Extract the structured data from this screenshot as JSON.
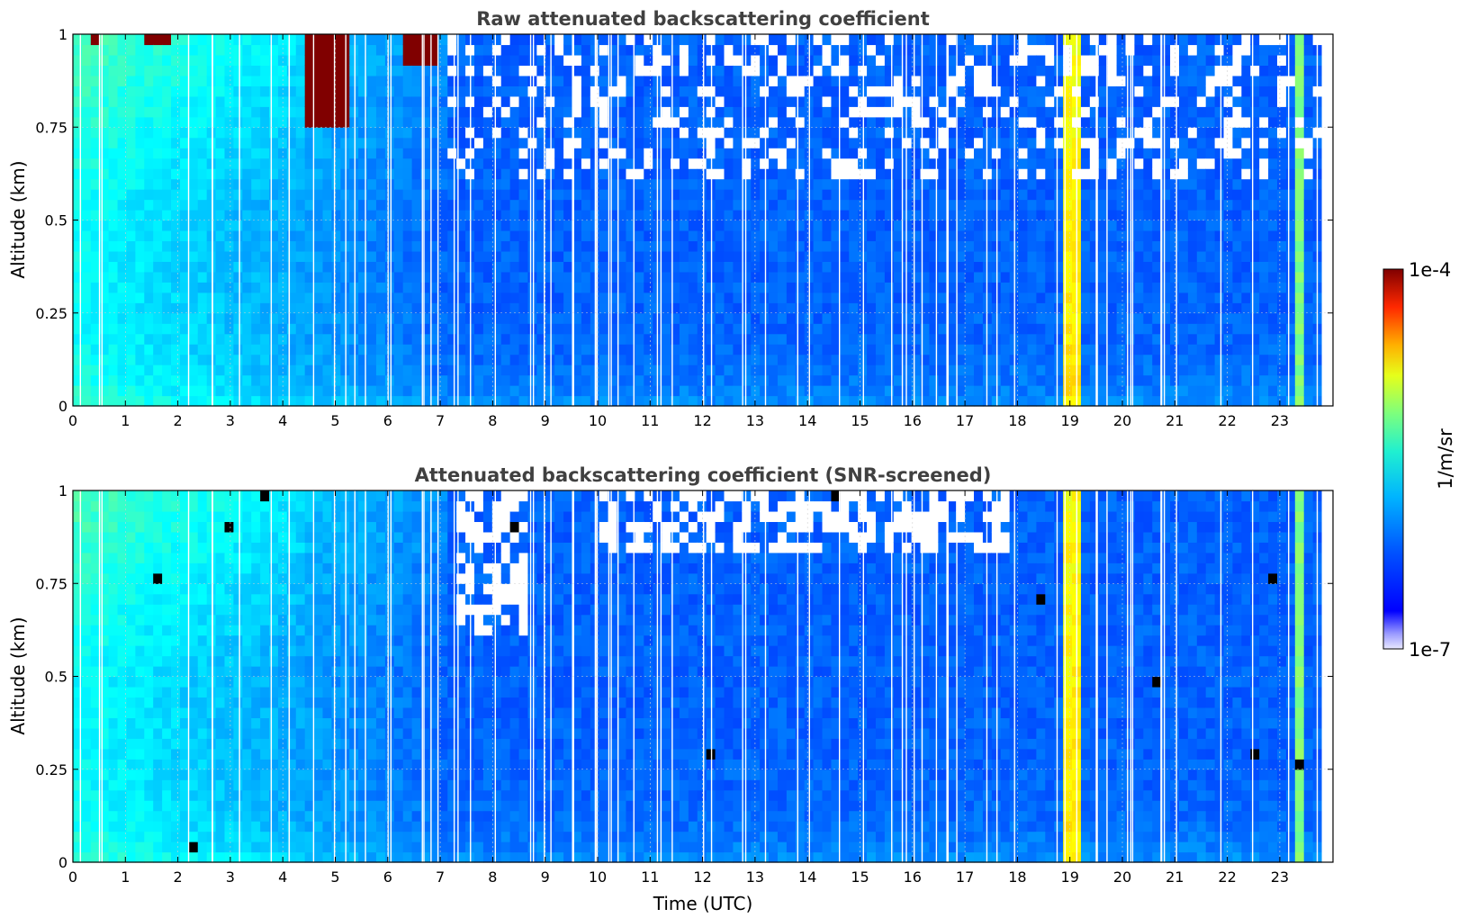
{
  "colors": {
    "colormap": "jet",
    "missing": "#ffffff",
    "saturated_screened": "#000000",
    "title_text": "#404040",
    "grid": "#d0d0d0"
  },
  "chart_data": [
    {
      "type": "heatmap",
      "title": "Raw attenuated backscattering coefficient",
      "xlabel": "",
      "ylabel": "Altitude (km)",
      "xlim": [
        0,
        24
      ],
      "ylim": [
        0,
        1
      ],
      "x_ticks": [
        "0",
        "1",
        "2",
        "3",
        "4",
        "5",
        "6",
        "7",
        "8",
        "9",
        "10",
        "11",
        "12",
        "13",
        "14",
        "15",
        "16",
        "17",
        "18",
        "19",
        "20",
        "21",
        "22",
        "23"
      ],
      "y_ticks": [
        "0",
        "0.25",
        "0.5",
        "0.75",
        "1"
      ],
      "data_end_hour": 23.8,
      "grid": true,
      "color_scale": "log",
      "features": [
        {
          "description": "aerosol layer high backscatter near top",
          "x_range": [
            0.2,
            0.5
          ],
          "y_range": [
            0.95,
            1.0
          ],
          "level": "1e-4"
        },
        {
          "description": "high backscatter patches",
          "x_range": [
            1.3,
            1.8
          ],
          "y_range": [
            0.95,
            1.0
          ],
          "level": "1e-4"
        },
        {
          "description": "descending cloud/aerosol layer",
          "x_range": [
            4.3,
            5.2
          ],
          "y_range": [
            0.75,
            1.0
          ],
          "level": "1e-4"
        },
        {
          "description": "descending cloud/aerosol layer",
          "x_range": [
            6.2,
            6.9
          ],
          "y_range": [
            0.9,
            1.0
          ],
          "level": "1e-4"
        },
        {
          "description": "enhanced column",
          "x_range": [
            18.9,
            19.1
          ],
          "y_range": [
            0.0,
            1.0
          ],
          "level": "mid"
        },
        {
          "description": "enhanced column",
          "x_range": [
            23.3,
            23.4
          ],
          "y_range": [
            0.0,
            1.0
          ],
          "level": "mid"
        }
      ]
    },
    {
      "type": "heatmap",
      "title": "Attenuated backscattering coefficient (SNR-screened)",
      "xlabel": "Time (UTC)",
      "ylabel": "Altitude (km)",
      "xlim": [
        0,
        24
      ],
      "ylim": [
        0,
        1
      ],
      "x_ticks": [
        "0",
        "1",
        "2",
        "3",
        "4",
        "5",
        "6",
        "7",
        "8",
        "9",
        "10",
        "11",
        "12",
        "13",
        "14",
        "15",
        "16",
        "17",
        "18",
        "19",
        "20",
        "21",
        "22",
        "23"
      ],
      "y_ticks": [
        "0",
        "0.25",
        "0.5",
        "0.75",
        "1"
      ],
      "data_end_hour": 23.8,
      "grid": true,
      "color_scale": "log",
      "screened_regions": [
        {
          "x_range": [
            7.3,
            8.5
          ],
          "y_range": [
            0.6,
            1.0
          ]
        },
        {
          "x_range": [
            10.0,
            17.8
          ],
          "y_range": [
            0.82,
            1.0
          ]
        }
      ]
    }
  ],
  "colorbar": {
    "max_label": "1e-4",
    "min_label": "1e-7",
    "label": "1/m/sr"
  }
}
